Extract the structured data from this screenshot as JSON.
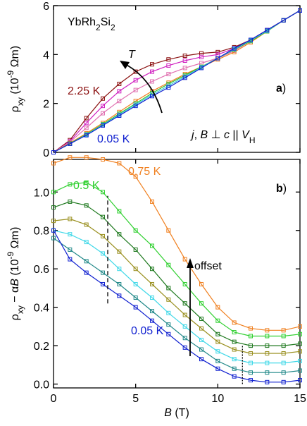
{
  "chart_data": [
    {
      "type": "line",
      "compound": [
        "YbRh",
        "2",
        "Si",
        "2"
      ],
      "panel_label": [
        "a",
        ")"
      ],
      "arrow_label": "T",
      "geometry": [
        "j",
        ", ",
        "B",
        " ⊥ ",
        "c",
        " || ",
        "V",
        "H"
      ],
      "y_label": [
        "ρ",
        "xy",
        " (10",
        "-9",
        " Ωm)"
      ],
      "x": [
        0,
        1,
        2,
        3,
        4,
        5,
        6,
        7,
        8,
        9,
        10,
        11,
        12,
        13,
        14,
        15
      ],
      "xlim": [
        0,
        15
      ],
      "xticks": [
        0,
        5,
        10,
        15
      ],
      "ylim": [
        0,
        6
      ],
      "yticks": [
        0,
        2,
        4,
        6
      ],
      "series": [
        {
          "name": "2.25 K",
          "color": "#8b1010",
          "values": [
            0,
            0.5,
            1.4,
            2.2,
            2.8,
            3.3,
            3.6,
            3.8,
            3.95,
            4.05,
            4.1,
            4.3,
            4.6,
            5.0,
            5.4,
            5.8
          ]
        },
        {
          "color": "#d020c0",
          "values": [
            0,
            0.45,
            1.2,
            1.9,
            2.5,
            2.95,
            3.3,
            3.55,
            3.75,
            3.9,
            4.0,
            4.25,
            4.6,
            5.0,
            5.4,
            5.8
          ]
        },
        {
          "color": "#e070b0",
          "values": [
            0,
            0.42,
            1.0,
            1.6,
            2.1,
            2.55,
            2.9,
            3.2,
            3.45,
            3.65,
            3.85,
            4.15,
            4.55,
            5.0,
            5.4,
            5.8
          ]
        },
        {
          "color": "#f08020",
          "values": [
            0,
            0.38,
            0.78,
            1.2,
            1.65,
            2.1,
            2.5,
            2.85,
            3.2,
            3.5,
            3.8,
            4.1,
            4.5,
            4.95,
            5.4,
            5.8
          ]
        },
        {
          "color": "#30c030",
          "values": [
            0,
            0.36,
            0.74,
            1.15,
            1.58,
            2.0,
            2.42,
            2.8,
            3.15,
            3.5,
            3.85,
            4.2,
            4.55,
            4.95,
            5.4,
            5.8
          ]
        },
        {
          "color": "#40c8e0",
          "values": [
            0,
            0.35,
            0.72,
            1.12,
            1.54,
            1.95,
            2.36,
            2.72,
            3.1,
            3.48,
            3.85,
            4.22,
            4.58,
            4.97,
            5.4,
            5.8
          ]
        },
        {
          "name": "0.05 K",
          "color": "#1020d0",
          "values": [
            0,
            0.35,
            0.7,
            1.1,
            1.5,
            1.9,
            2.3,
            2.65,
            3.05,
            3.45,
            3.85,
            4.25,
            4.6,
            5.0,
            5.4,
            5.8
          ]
        }
      ]
    },
    {
      "type": "line",
      "panel_label": [
        "b",
        ")"
      ],
      "arrow_label": "offset",
      "y_label": [
        "ρ",
        "xy",
        " − α",
        "B",
        " (10",
        "-9",
        " Ωm)"
      ],
      "x_label": [
        "B",
        " (T)"
      ],
      "x": [
        0,
        1,
        2,
        3,
        4,
        5,
        6,
        7,
        8,
        9,
        10,
        11,
        12,
        13,
        14,
        15
      ],
      "xlim": [
        0,
        15
      ],
      "xticks": [
        0,
        5,
        10,
        15
      ],
      "ylim": [
        -0.02,
        1.17
      ],
      "yticks": [
        {
          "value": 0,
          "label": "0.0"
        },
        {
          "value": 0.2,
          "label": "0.2"
        },
        {
          "value": 0.4,
          "label": "0.4"
        },
        {
          "value": 0.6,
          "label": "0.6"
        },
        {
          "value": 0.8,
          "label": "0.8"
        },
        {
          "value": 1.0,
          "label": "1.0"
        }
      ],
      "series": [
        {
          "name": "0.75 K",
          "color": "#f08020",
          "values": [
            1.15,
            1.18,
            1.18,
            1.17,
            1.15,
            1.08,
            0.95,
            0.8,
            0.65,
            0.52,
            0.4,
            0.32,
            0.29,
            0.28,
            0.28,
            0.3
          ]
        },
        {
          "name": "0.5 K",
          "color": "#30d030",
          "values": [
            1.0,
            1.04,
            1.05,
            1.0,
            0.9,
            0.8,
            0.72,
            0.62,
            0.52,
            0.42,
            0.33,
            0.27,
            0.25,
            0.25,
            0.25,
            0.26
          ]
        },
        {
          "color": "#207a20",
          "values": [
            0.92,
            0.95,
            0.93,
            0.87,
            0.78,
            0.7,
            0.6,
            0.5,
            0.42,
            0.34,
            0.26,
            0.22,
            0.2,
            0.2,
            0.2,
            0.21
          ]
        },
        {
          "color": "#9a9020",
          "values": [
            0.85,
            0.86,
            0.83,
            0.77,
            0.69,
            0.6,
            0.52,
            0.44,
            0.36,
            0.29,
            0.22,
            0.18,
            0.16,
            0.16,
            0.16,
            0.17
          ]
        },
        {
          "color": "#40d8e8",
          "values": [
            0.8,
            0.78,
            0.74,
            0.68,
            0.6,
            0.52,
            0.45,
            0.37,
            0.3,
            0.23,
            0.17,
            0.13,
            0.11,
            0.11,
            0.11,
            0.12
          ]
        },
        {
          "color": "#208888",
          "values": [
            0.76,
            0.7,
            0.64,
            0.58,
            0.52,
            0.45,
            0.38,
            0.31,
            0.24,
            0.18,
            0.12,
            0.08,
            0.06,
            0.06,
            0.06,
            0.07
          ]
        },
        {
          "name": "0.05 K",
          "color": "#1020d0",
          "values": [
            0.8,
            0.65,
            0.58,
            0.52,
            0.46,
            0.4,
            0.33,
            0.26,
            0.19,
            0.13,
            0.08,
            0.04,
            0.02,
            0.01,
            0.01,
            0.02
          ]
        }
      ],
      "reference_lines": [
        {
          "x": 3.3,
          "y": [
            0.42,
            0.98
          ],
          "style": "dashed"
        },
        {
          "x": 11.5,
          "y": [
            0,
            0.2
          ],
          "style": "dotted"
        }
      ]
    }
  ]
}
